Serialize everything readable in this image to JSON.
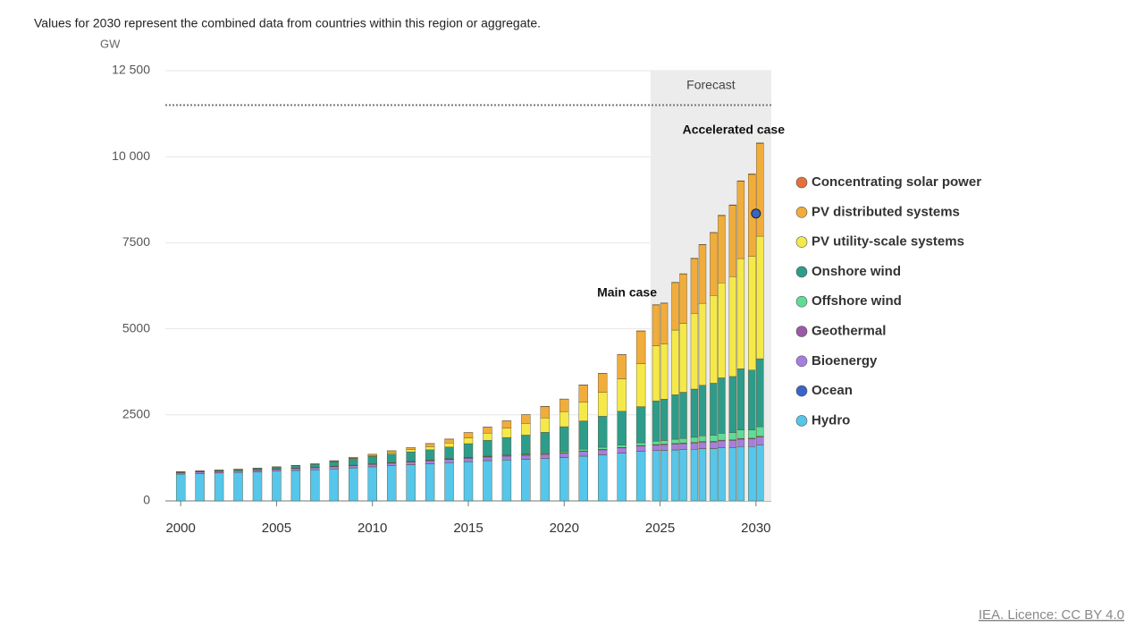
{
  "chart_data": {
    "type": "stacked-bar",
    "subtitle": "Values for 2030 represent the combined data from countries within this region or aggregate.",
    "y_unit": "GW",
    "forecast_label": "Forecast",
    "annotations": [
      "Main case",
      "Accelerated case"
    ],
    "source": "IEA. Licence: CC BY 4.0",
    "xlim": [
      1999.2,
      2030.8
    ],
    "xticks": [
      2000,
      2005,
      2010,
      2015,
      2020,
      2025,
      2030
    ],
    "ylim": [
      0,
      12500
    ],
    "yticks": [
      0,
      2500,
      5000,
      7500,
      {
        "value": 10000,
        "label": "10 000"
      },
      {
        "value": 12500,
        "label": "12 500"
      }
    ],
    "grid": true,
    "reference_line": 11500,
    "marker": {
      "x": 2030,
      "value": 8350,
      "color": "#3a64c8"
    },
    "x": [
      2000,
      2001,
      2002,
      2003,
      2004,
      2005,
      2006,
      2007,
      2008,
      2009,
      2010,
      2011,
      2012,
      2013,
      2014,
      2015,
      2016,
      2017,
      2018,
      2019,
      2020,
      2021,
      2022,
      2023,
      2024,
      2025,
      2025,
      2026,
      2026,
      2027,
      2027,
      2028,
      2028,
      2029,
      2029,
      2030,
      2030
    ],
    "series": [
      {
        "name": "Concentrating solar power",
        "color": "#e4703a",
        "values": [
          0.4,
          0.4,
          0.4,
          0.4,
          0.4,
          0.4,
          0.4,
          0.5,
          0.7,
          0.9,
          1.3,
          1.8,
          2.5,
          3.5,
          4.5,
          4.8,
          5,
          5.2,
          5.5,
          6,
          6.3,
          6.5,
          6.7,
          6.8,
          7,
          8,
          8,
          9,
          9,
          10,
          10,
          11,
          12,
          13,
          14,
          15,
          16
        ]
      },
      {
        "name": "PV distributed systems",
        "color": "#f0ad3c",
        "values": [
          1,
          1,
          2,
          2,
          3,
          4,
          6,
          8,
          20,
          30,
          40,
          55,
          65,
          90,
          110,
          150,
          170,
          210,
          250,
          330,
          360,
          500,
          550,
          700,
          945,
          1186,
          1188,
          1379,
          1435,
          1592,
          1701,
          1821,
          1954,
          2073,
          2246,
          2385,
          2694
        ]
      },
      {
        "name": "PV utility-scale systems",
        "color": "#f5e94a",
        "values": [
          0.1,
          0.1,
          0.2,
          0.3,
          0.5,
          1,
          1,
          2,
          4,
          10,
          20,
          40,
          60,
          90,
          120,
          170,
          210,
          270,
          340,
          420,
          440,
          540,
          690,
          940,
          1250,
          1600,
          1600,
          1880,
          2000,
          2200,
          2380,
          2550,
          2760,
          2900,
          3200,
          3300,
          3560
        ]
      },
      {
        "name": "Onshore wind",
        "color": "#2e9c8a",
        "values": [
          17,
          24,
          31,
          39,
          47,
          58,
          73,
          93,
          140,
          190,
          220,
          250,
          280,
          300,
          340,
          400,
          460,
          510,
          550,
          600,
          720,
          820,
          900,
          980,
          1050,
          1170,
          1200,
          1290,
          1340,
          1400,
          1470,
          1510,
          1610,
          1630,
          1780,
          1740,
          1975
        ]
      },
      {
        "name": "Offshore wind",
        "color": "#5fdc96",
        "values": [
          0,
          0,
          0,
          0,
          1,
          1,
          1,
          1,
          1,
          2,
          3,
          4,
          5,
          7,
          9,
          12,
          14,
          18,
          23,
          28,
          34,
          53,
          62,
          72,
          80,
          100,
          105,
          125,
          135,
          150,
          165,
          180,
          200,
          210,
          245,
          240,
          280
        ]
      },
      {
        "name": "Geothermal",
        "color": "#9b5aa8",
        "values": [
          8,
          8,
          8,
          8,
          9,
          9,
          9,
          10,
          10,
          10,
          10,
          11,
          11,
          11,
          12,
          12,
          12,
          13,
          13,
          14,
          14,
          15,
          15,
          15,
          16,
          16,
          17,
          17,
          18,
          18,
          19,
          18,
          21,
          19,
          23,
          20,
          25
        ]
      },
      {
        "name": "Bioenergy",
        "color": "#a67ee0",
        "values": [
          40,
          42,
          44,
          46,
          49,
          52,
          55,
          58,
          62,
          66,
          70,
          75,
          80,
          86,
          92,
          98,
          104,
          110,
          115,
          120,
          127,
          135,
          142,
          147,
          152,
          160,
          162,
          170,
          173,
          180,
          185,
          190,
          198,
          205,
          212,
          220,
          230
        ]
      },
      {
        "name": "Ocean",
        "color": "#3a64c8",
        "values": [
          0.3,
          0.3,
          0.3,
          0.3,
          0.3,
          0.3,
          0.3,
          0.3,
          0.3,
          0.3,
          0.5,
          0.5,
          0.5,
          0.5,
          0.5,
          0.5,
          0.5,
          0.5,
          0.5,
          0.5,
          0.5,
          0.5,
          0.5,
          0.5,
          0.5,
          0.6,
          0.6,
          0.6,
          0.6,
          0.6,
          0.6,
          0.6,
          0.6,
          0.6,
          0.6,
          0.6,
          0.6
        ]
      },
      {
        "name": "Hydro",
        "color": "#56c6ea",
        "values": [
          780,
          795,
          810,
          825,
          845,
          865,
          885,
          905,
          930,
          960,
          990,
          1020,
          1050,
          1080,
          1110,
          1140,
          1170,
          1190,
          1210,
          1230,
          1260,
          1300,
          1340,
          1390,
          1440,
          1460,
          1470,
          1480,
          1490,
          1500,
          1520,
          1520,
          1545,
          1550,
          1580,
          1580,
          1620
        ]
      }
    ]
  }
}
